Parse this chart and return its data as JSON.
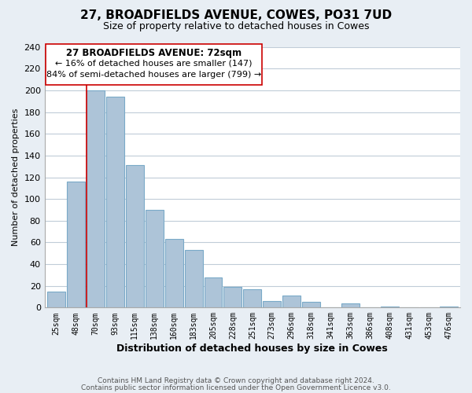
{
  "title": "27, BROADFIELDS AVENUE, COWES, PO31 7UD",
  "subtitle": "Size of property relative to detached houses in Cowes",
  "xlabel": "Distribution of detached houses by size in Cowes",
  "ylabel": "Number of detached properties",
  "bar_labels": [
    "25sqm",
    "48sqm",
    "70sqm",
    "93sqm",
    "115sqm",
    "138sqm",
    "160sqm",
    "183sqm",
    "205sqm",
    "228sqm",
    "251sqm",
    "273sqm",
    "296sqm",
    "318sqm",
    "341sqm",
    "363sqm",
    "386sqm",
    "408sqm",
    "431sqm",
    "453sqm",
    "476sqm"
  ],
  "bar_values": [
    15,
    116,
    200,
    194,
    131,
    90,
    63,
    53,
    28,
    19,
    17,
    6,
    11,
    5,
    0,
    4,
    0,
    1,
    0,
    0,
    1
  ],
  "highlight_index": 2,
  "bar_color": "#adc4d8",
  "bar_edge_color": "#7aaac8",
  "highlight_edge_color": "#cc0000",
  "ylim": [
    0,
    240
  ],
  "yticks": [
    0,
    20,
    40,
    60,
    80,
    100,
    120,
    140,
    160,
    180,
    200,
    220,
    240
  ],
  "annotation_title": "27 BROADFIELDS AVENUE: 72sqm",
  "annotation_line1": "← 16% of detached houses are smaller (147)",
  "annotation_line2": "84% of semi-detached houses are larger (799) →",
  "footer1": "Contains HM Land Registry data © Crown copyright and database right 2024.",
  "footer2": "Contains public sector information licensed under the Open Government Licence v3.0.",
  "bg_color": "#e8eef4",
  "plot_bg_color": "#ffffff",
  "grid_color": "#c0ccd8"
}
